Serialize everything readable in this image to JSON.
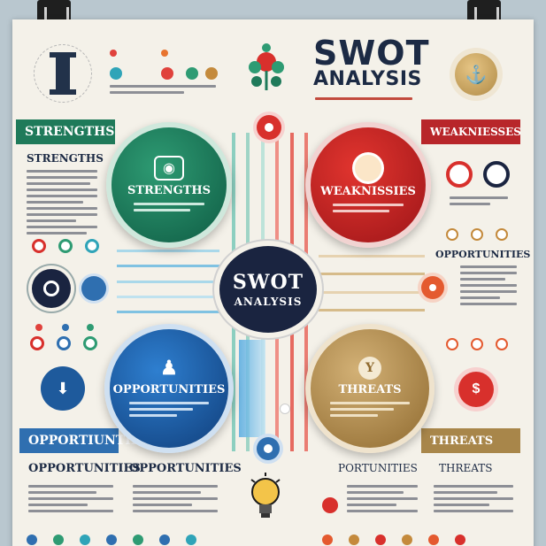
{
  "title": {
    "main": "SWOT",
    "sub": "ANALYSIS"
  },
  "center": {
    "line1": "SWOT",
    "line2": "ANALYSIS"
  },
  "quadrants": {
    "strengths": {
      "banner": "STRENGTHS",
      "heading": "STRENGTHS",
      "circle": "STRENGTHS"
    },
    "weaknesses": {
      "banner": "WEAKNIESSES",
      "circle": "WEAKNISSIES"
    },
    "opportunities": {
      "banner": "OPPORTIUNTIES",
      "circle": "OPPORTUNITIES",
      "side_heading": "OPPORTUNITIES"
    },
    "threats": {
      "banner": "THREATS",
      "circle": "THREATS"
    }
  },
  "bottom_headings": [
    "OPPORTUNITIES",
    "OPPORTUNITIES",
    "PORTUNITIES",
    "THREATS"
  ],
  "colors": {
    "green": "#1f7a5a",
    "red": "#b8262a",
    "blue": "#2f6fb0",
    "gold": "#a8864a",
    "navy": "#1c2a44"
  },
  "icons": [
    "pillar-icon",
    "rose-icon",
    "anchor-coin-icon",
    "camera-icon",
    "lightbulb-icon",
    "person-icon",
    "chalice-icon",
    "dollar-icon",
    "target-icon"
  ]
}
